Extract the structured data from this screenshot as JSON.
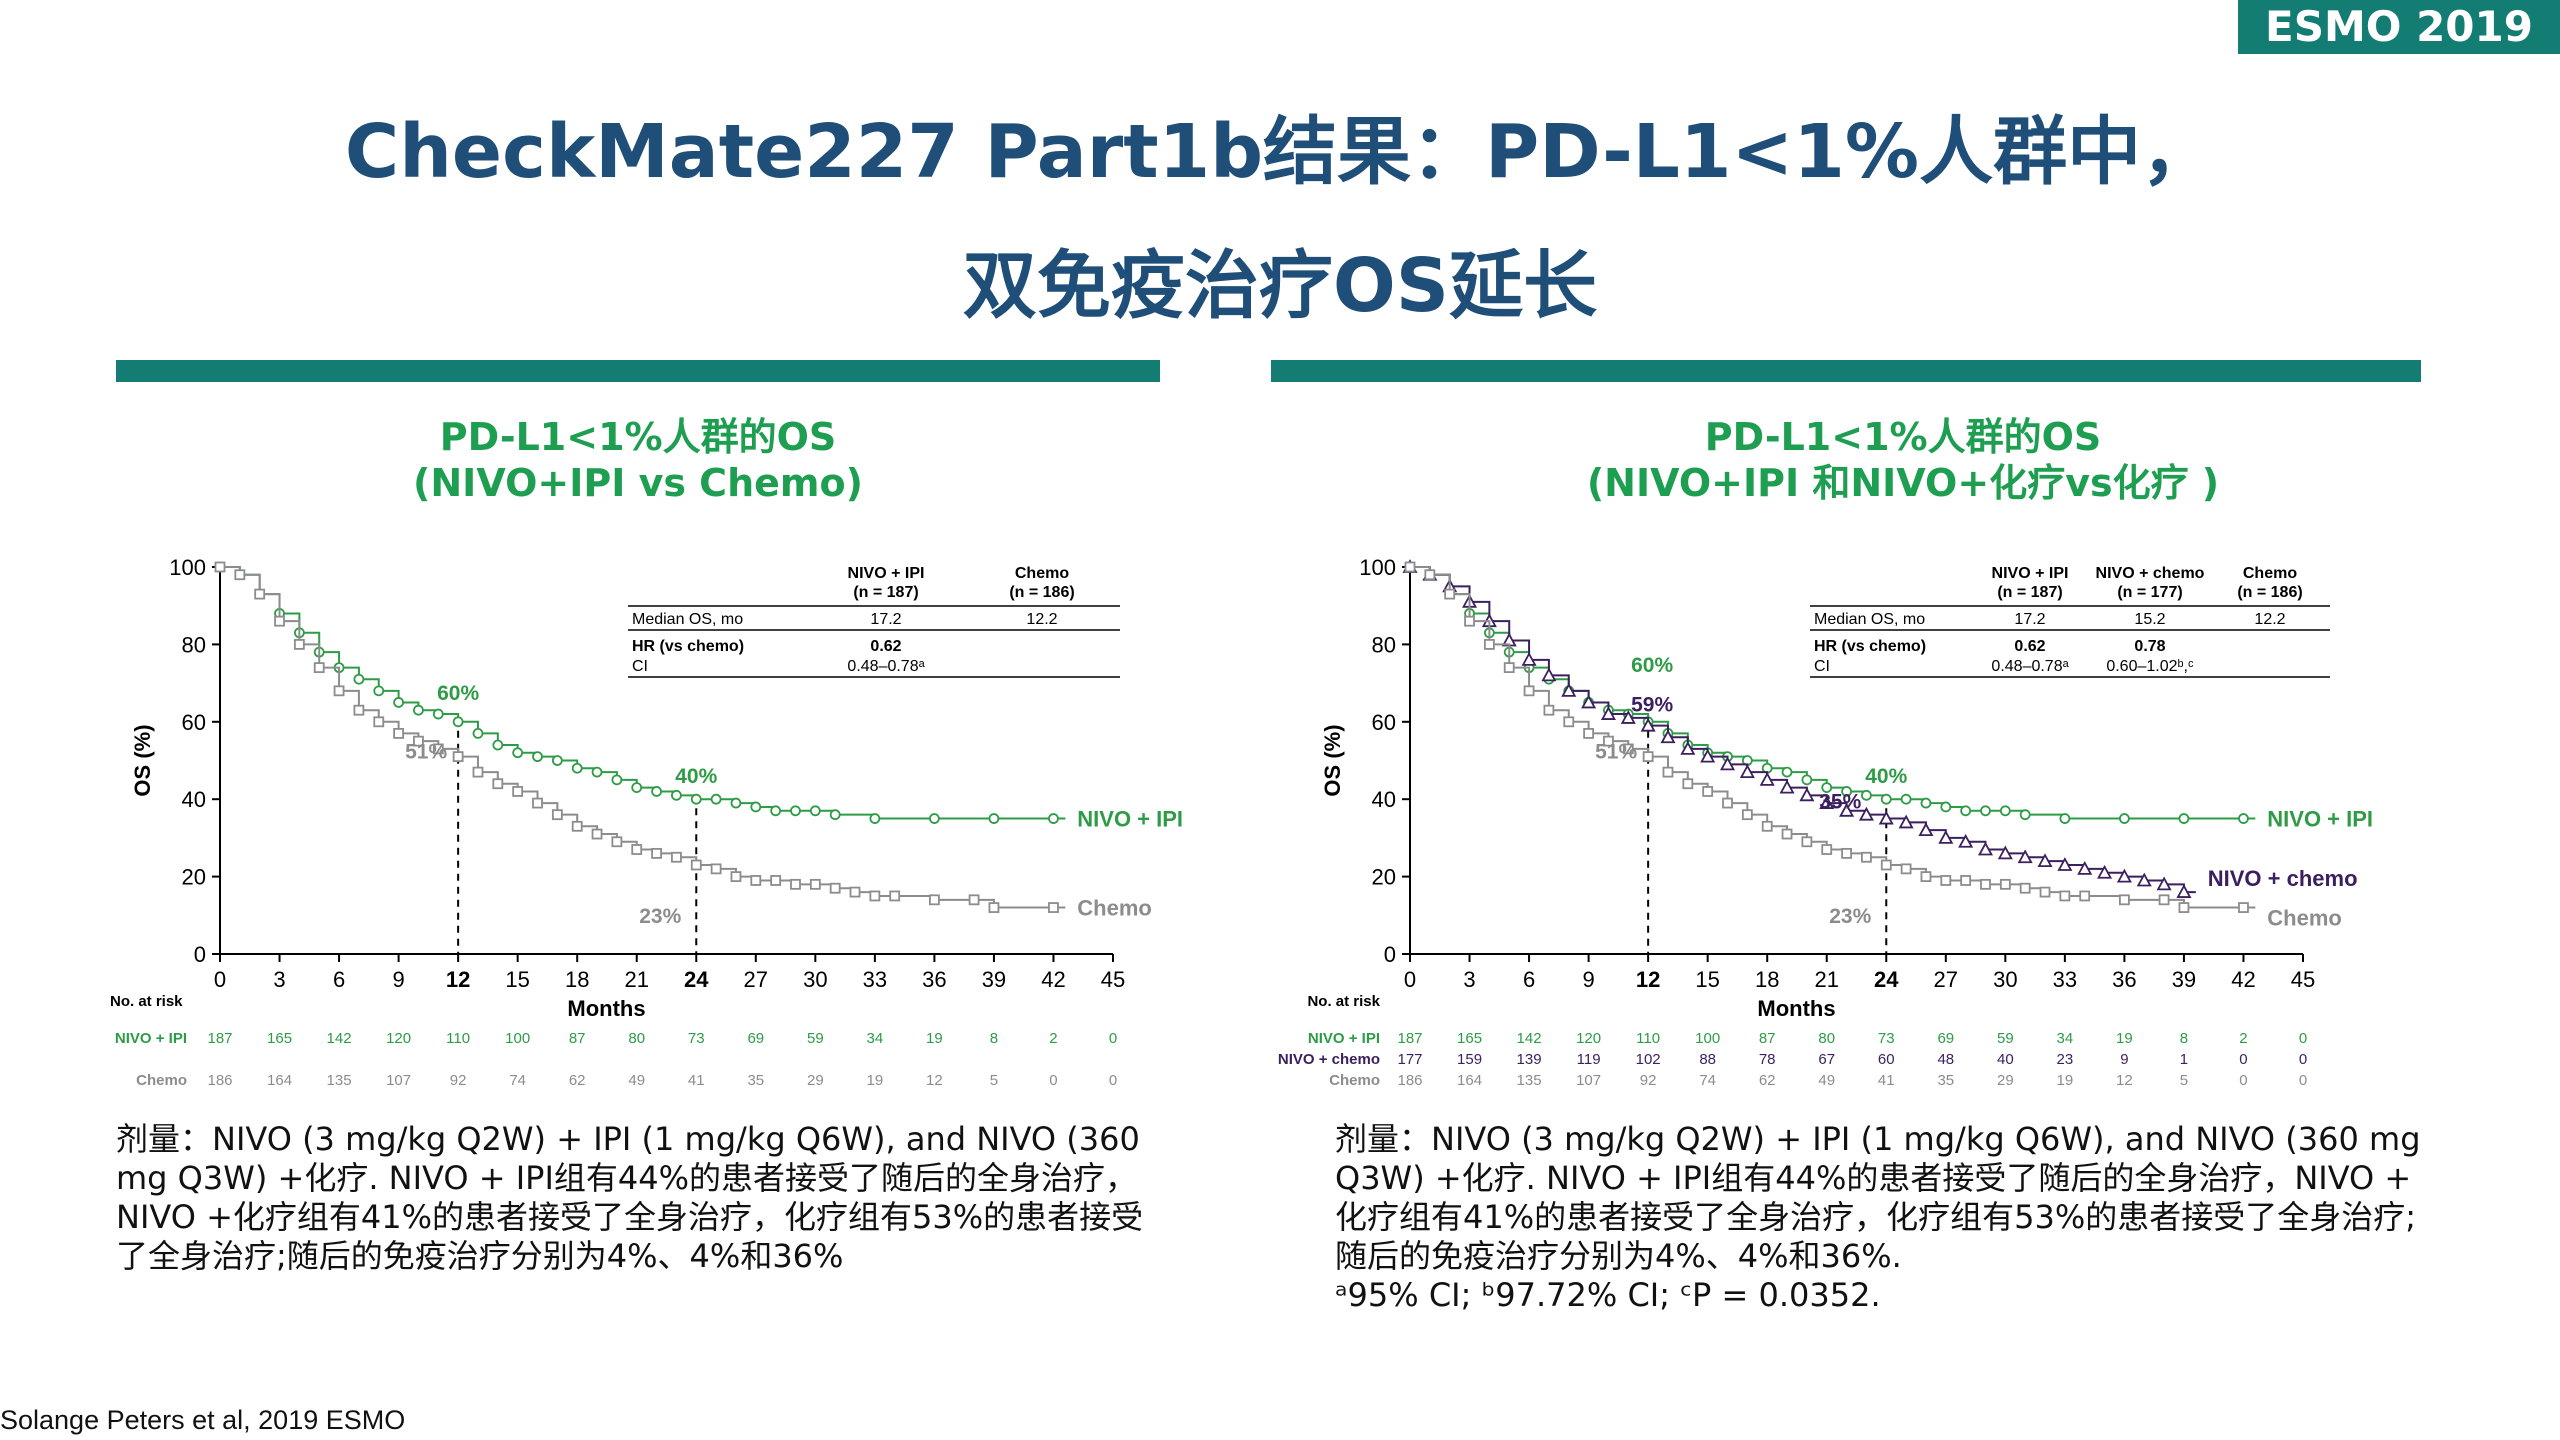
{
  "badge": "ESMO 2019",
  "title_line1": "CheckMate227 Part1b结果：PD-L1<1%人群中，",
  "title_line2": "双免疫治疗OS延长",
  "source": "Solange Peters et al, 2019 ESMO",
  "colors": {
    "teal": "#137d74",
    "navy_title": "#1f4e79",
    "green": "#2e9b46",
    "gray": "#8c8c8c",
    "purple": "#3b1f5e"
  },
  "left_panel": {
    "title_line1": "PD-L1<1%人群的OS",
    "title_line2": "(NIVO+IPI vs Chemo)",
    "dose_lines": [
      "剂量：NIVO (3 mg/kg Q2W) + IPI (1 mg/kg Q6W), and NIVO (360",
      "mg Q3W) +化疗. NIVO + IPI组有44%的患者接受了随后的全身治疗，",
      "NIVO +化疗组有41%的患者接受了全身治疗，化疗组有53%的患者接受",
      "了全身治疗;随后的免疫治疗分别为4%、4%和36%"
    ]
  },
  "right_panel": {
    "title_line1": "PD-L1<1%人群的OS",
    "title_line2": "(NIVO+IPI 和NIVO+化疗vs化疗 )",
    "dose_lines": [
      "剂量：NIVO (3 mg/kg Q2W) + IPI (1 mg/kg Q6W), and NIVO (360 mg",
      "Q3W) +化疗. NIVO + IPI组有44%的患者接受了随后的全身治疗，NIVO +",
      "化疗组有41%的患者接受了全身治疗，化疗组有53%的患者接受了全身治疗;",
      "随后的免疫治疗分别为4%、4%和36%."
    ],
    "footnote": "ᵃ95% CI; ᵇ97.72% CI; ᶜP = 0.0352."
  },
  "chart_data": [
    {
      "type": "line",
      "chart_kind": "kaplan-meier",
      "ylabel": "OS (%)",
      "xlabel": "Months",
      "xlim": [
        0,
        45
      ],
      "ylim": [
        0,
        100
      ],
      "xticks": [
        0,
        3,
        6,
        9,
        12,
        15,
        18,
        21,
        24,
        27,
        30,
        33,
        36,
        39,
        42,
        45
      ],
      "yticks": [
        0,
        20,
        40,
        60,
        80,
        100
      ],
      "bold_xticks": [
        12,
        24
      ],
      "reference_lines_x": [
        12,
        24
      ],
      "series": [
        {
          "name": "NIVO + IPI",
          "color": "#2e9b46",
          "x": [
            0,
            1,
            2,
            3,
            4,
            5,
            6,
            7,
            8,
            9,
            10,
            11,
            12,
            13,
            14,
            15,
            16,
            17,
            18,
            19,
            20,
            21,
            22,
            23,
            24,
            25,
            26,
            27,
            28,
            29,
            30,
            31,
            33,
            36,
            39,
            42
          ],
          "y": [
            100,
            98,
            93,
            88,
            83,
            78,
            74,
            71,
            68,
            65,
            63,
            62,
            60,
            57,
            54,
            52,
            51,
            50,
            48,
            47,
            45,
            43,
            42,
            41,
            40,
            40,
            39,
            38,
            37,
            37,
            37,
            36,
            35,
            35,
            35,
            35
          ]
        },
        {
          "name": "Chemo",
          "color": "#8c8c8c",
          "x": [
            0,
            1,
            2,
            3,
            4,
            5,
            6,
            7,
            8,
            9,
            10,
            11,
            12,
            13,
            14,
            15,
            16,
            17,
            18,
            19,
            20,
            21,
            22,
            23,
            24,
            25,
            26,
            27,
            28,
            29,
            30,
            31,
            32,
            33,
            34,
            36,
            38,
            39,
            42
          ],
          "y": [
            100,
            98,
            93,
            86,
            80,
            74,
            68,
            63,
            60,
            57,
            55,
            53,
            51,
            47,
            44,
            42,
            39,
            36,
            33,
            31,
            29,
            27,
            26,
            25,
            23,
            22,
            20,
            19,
            19,
            18,
            18,
            17,
            16,
            15,
            15,
            14,
            14,
            12,
            12
          ]
        }
      ],
      "annotations": [
        {
          "text": "60%",
          "series": "NIVO + IPI",
          "x": 12,
          "y": 60
        },
        {
          "text": "51%",
          "series": "Chemo",
          "x": 12,
          "y": 51
        },
        {
          "text": "40%",
          "series": "NIVO + IPI",
          "x": 24,
          "y": 40
        },
        {
          "text": "23%",
          "series": "Chemo",
          "x": 24,
          "y": 23
        }
      ],
      "stats_table": {
        "columns": [
          "NIVO + IPI\n(n = 187)",
          "Chemo\n(n = 186)"
        ],
        "rows": [
          {
            "label": "Median OS, mo",
            "values": [
              "17.2",
              "12.2"
            ]
          },
          {
            "label": "HR (vs chemo)",
            "values": [
              "0.62",
              ""
            ]
          },
          {
            "label": "CI",
            "values": [
              "0.48–0.78ᵃ",
              ""
            ]
          }
        ]
      },
      "risk_table": {
        "title": "No. at risk",
        "rows": [
          {
            "name": "NIVO + IPI",
            "values": [
              187,
              165,
              142,
              120,
              110,
              100,
              87,
              80,
              73,
              69,
              59,
              34,
              19,
              8,
              2,
              0
            ]
          },
          {
            "name": "Chemo",
            "values": [
              186,
              164,
              135,
              107,
              92,
              74,
              62,
              49,
              41,
              35,
              29,
              19,
              12,
              5,
              0,
              0
            ]
          }
        ]
      }
    },
    {
      "type": "line",
      "chart_kind": "kaplan-meier",
      "ylabel": "OS (%)",
      "xlabel": "Months",
      "xlim": [
        0,
        45
      ],
      "ylim": [
        0,
        100
      ],
      "xticks": [
        0,
        3,
        6,
        9,
        12,
        15,
        18,
        21,
        24,
        27,
        30,
        33,
        36,
        39,
        42,
        45
      ],
      "yticks": [
        0,
        20,
        40,
        60,
        80,
        100
      ],
      "bold_xticks": [
        12,
        24
      ],
      "reference_lines_x": [
        12,
        24
      ],
      "series": [
        {
          "name": "NIVO + IPI",
          "color": "#2e9b46",
          "x": [
            0,
            1,
            2,
            3,
            4,
            5,
            6,
            7,
            8,
            9,
            10,
            11,
            12,
            13,
            14,
            15,
            16,
            17,
            18,
            19,
            20,
            21,
            22,
            23,
            24,
            25,
            26,
            27,
            28,
            29,
            30,
            31,
            33,
            36,
            39,
            42
          ],
          "y": [
            100,
            98,
            93,
            88,
            83,
            78,
            74,
            71,
            68,
            65,
            63,
            62,
            60,
            57,
            54,
            52,
            51,
            50,
            48,
            47,
            45,
            43,
            42,
            41,
            40,
            40,
            39,
            38,
            37,
            37,
            37,
            36,
            35,
            35,
            35,
            35
          ]
        },
        {
          "name": "NIVO + chemo",
          "color": "#3b1f5e",
          "x": [
            0,
            1,
            2,
            3,
            4,
            5,
            6,
            7,
            8,
            9,
            10,
            11,
            12,
            13,
            14,
            15,
            16,
            17,
            18,
            19,
            20,
            21,
            22,
            23,
            24,
            25,
            26,
            27,
            28,
            29,
            30,
            31,
            32,
            33,
            34,
            35,
            36,
            37,
            38,
            39
          ],
          "y": [
            100,
            98,
            95,
            91,
            86,
            81,
            76,
            72,
            68,
            65,
            62,
            61,
            59,
            56,
            53,
            51,
            49,
            47,
            45,
            43,
            41,
            39,
            37,
            36,
            35,
            34,
            32,
            30,
            29,
            27,
            26,
            25,
            24,
            23,
            22,
            21,
            20,
            19,
            18,
            16
          ]
        },
        {
          "name": "Chemo",
          "color": "#8c8c8c",
          "x": [
            0,
            1,
            2,
            3,
            4,
            5,
            6,
            7,
            8,
            9,
            10,
            11,
            12,
            13,
            14,
            15,
            16,
            17,
            18,
            19,
            20,
            21,
            22,
            23,
            24,
            25,
            26,
            27,
            28,
            29,
            30,
            31,
            32,
            33,
            34,
            36,
            38,
            39,
            42
          ],
          "y": [
            100,
            98,
            93,
            86,
            80,
            74,
            68,
            63,
            60,
            57,
            55,
            53,
            51,
            47,
            44,
            42,
            39,
            36,
            33,
            31,
            29,
            27,
            26,
            25,
            23,
            22,
            20,
            19,
            19,
            18,
            18,
            17,
            16,
            15,
            15,
            14,
            14,
            12,
            12
          ]
        }
      ],
      "annotations": [
        {
          "text": "60%",
          "series": "NIVO + IPI",
          "x": 12,
          "y": 60
        },
        {
          "text": "59%",
          "series": "NIVO + chemo",
          "x": 12,
          "y": 59
        },
        {
          "text": "51%",
          "series": "Chemo",
          "x": 12,
          "y": 51
        },
        {
          "text": "40%",
          "series": "NIVO + IPI",
          "x": 24,
          "y": 40
        },
        {
          "text": "35%",
          "series": "NIVO + chemo",
          "x": 24,
          "y": 35
        },
        {
          "text": "23%",
          "series": "Chemo",
          "x": 24,
          "y": 23
        }
      ],
      "stats_table": {
        "columns": [
          "NIVO + IPI\n(n = 187)",
          "NIVO + chemo\n(n = 177)",
          "Chemo\n(n = 186)"
        ],
        "rows": [
          {
            "label": "Median OS, mo",
            "values": [
              "17.2",
              "15.2",
              "12.2"
            ]
          },
          {
            "label": "HR (vs chemo)",
            "values": [
              "0.62",
              "0.78",
              ""
            ]
          },
          {
            "label": "CI",
            "values": [
              "0.48–0.78ᵃ",
              "0.60–1.02ᵇ,ᶜ",
              ""
            ]
          }
        ]
      },
      "risk_table": {
        "title": "No. at risk",
        "rows": [
          {
            "name": "NIVO + IPI",
            "values": [
              187,
              165,
              142,
              120,
              110,
              100,
              87,
              80,
              73,
              69,
              59,
              34,
              19,
              8,
              2,
              0
            ]
          },
          {
            "name": "NIVO + chemo",
            "values": [
              177,
              159,
              139,
              119,
              102,
              88,
              78,
              67,
              60,
              48,
              40,
              23,
              9,
              1,
              0,
              0
            ]
          },
          {
            "name": "Chemo",
            "values": [
              186,
              164,
              135,
              107,
              92,
              74,
              62,
              49,
              41,
              35,
              29,
              19,
              12,
              5,
              0,
              0
            ]
          }
        ]
      }
    }
  ]
}
